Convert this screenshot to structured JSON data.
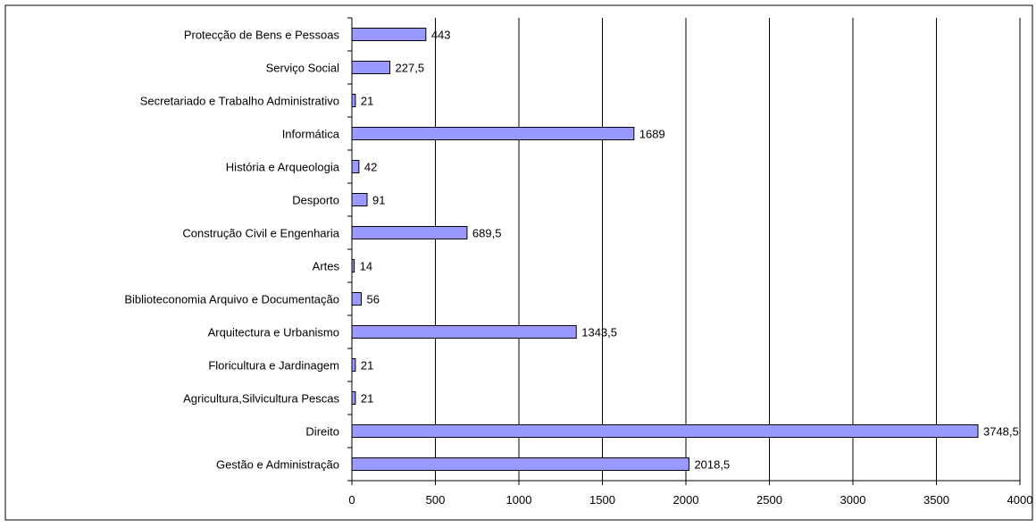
{
  "chart_data": {
    "type": "bar",
    "orientation": "horizontal",
    "categories": [
      "Protecção de Bens e Pessoas",
      "Serviço Social",
      "Secretariado e Trabalho Administrativo",
      "Informática",
      "História e Arqueologia",
      "Desporto",
      "Construção Civil e Engenharia",
      "Artes",
      "Biblioteconomia Arquivo e Documentação",
      "Arquitectura e Urbanismo",
      "Floricultura e Jardinagem",
      "Agricultura,Silvicultura Pescas",
      "Direito",
      "Gestão e Administração"
    ],
    "values": [
      443,
      227.5,
      21,
      1689,
      42,
      91,
      689.5,
      14,
      56,
      1343.5,
      21,
      21,
      3748.5,
      2018.5
    ],
    "value_labels": [
      "443",
      "227,5",
      "21",
      "1689",
      "42",
      "91",
      "689,5",
      "14",
      "56",
      "1343,5",
      "21",
      "21",
      "3748,5",
      "2018,5"
    ],
    "xlim": [
      0,
      4000
    ],
    "xticks": [
      0,
      500,
      1000,
      1500,
      2000,
      2500,
      3000,
      3500,
      4000
    ],
    "xtick_labels": [
      "0",
      "500",
      "1000",
      "1500",
      "2000",
      "2500",
      "3000",
      "3500",
      "4000"
    ],
    "grid": "vertical",
    "legend": "none",
    "title": "",
    "xlabel": "",
    "ylabel": "",
    "colors": {
      "bar_fill": "#9999ff",
      "bar_stroke": "#000000",
      "grid": "#000000",
      "frame": "#000000"
    }
  }
}
